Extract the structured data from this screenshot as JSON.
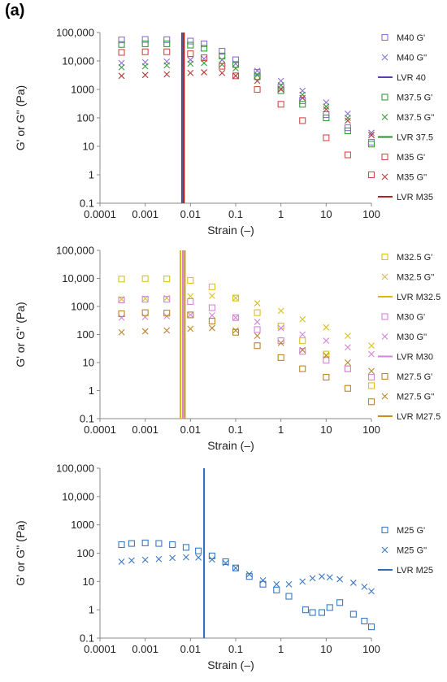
{
  "panel_label": "(a)",
  "chart_data": [
    {
      "type": "scatter",
      "xlabel": "Strain (–)",
      "ylabel": "G' or G'' (Pa)",
      "xscale": "log",
      "yscale": "log",
      "xlim": [
        0.0001,
        100
      ],
      "ylim": [
        0.1,
        100000
      ],
      "xticks": [
        "0.0001",
        "0.001",
        "0.01",
        "0.1",
        "1",
        "10",
        "100"
      ],
      "yticks": [
        "0.1",
        "1",
        "10",
        "100",
        "1000",
        "10,000",
        "100,000"
      ],
      "grid": false,
      "legend": "right",
      "series": [
        {
          "name": "M40 G'",
          "marker": "square",
          "color": "#8e6fd1",
          "x": [
            0.0003,
            0.001,
            0.003,
            0.01,
            0.02,
            0.05,
            0.1,
            0.3,
            1,
            3,
            10,
            30,
            100
          ],
          "y": [
            55000,
            57000,
            56000,
            50000,
            40000,
            22000,
            11000,
            4000,
            1200,
            400,
            130,
            45,
            14
          ]
        },
        {
          "name": "M40 G''",
          "marker": "x",
          "color": "#8e6fd1",
          "x": [
            0.0003,
            0.001,
            0.003,
            0.01,
            0.02,
            0.05,
            0.1,
            0.3,
            1,
            3,
            10,
            30,
            100
          ],
          "y": [
            8500,
            9000,
            9500,
            11000,
            12000,
            11000,
            8000,
            4500,
            2000,
            900,
            350,
            140,
            30
          ]
        },
        {
          "name": "LVR 40",
          "type": "vline",
          "color": "#5b3fb0",
          "x": 0.0065
        },
        {
          "name": "M37.5 G'",
          "marker": "square",
          "color": "#3d9a3d",
          "x": [
            0.0003,
            0.001,
            0.003,
            0.01,
            0.02,
            0.05,
            0.1,
            0.3,
            1,
            3,
            10,
            30,
            100
          ],
          "y": [
            38000,
            40000,
            40000,
            36000,
            28000,
            15000,
            7500,
            2800,
            900,
            300,
            100,
            35,
            12
          ]
        },
        {
          "name": "M37.5 G''",
          "marker": "x",
          "color": "#3d9a3d",
          "x": [
            0.0003,
            0.001,
            0.003,
            0.01,
            0.02,
            0.05,
            0.1,
            0.3,
            1,
            3,
            10,
            30,
            100
          ],
          "y": [
            6000,
            6500,
            7000,
            8000,
            8500,
            7500,
            5500,
            3200,
            1400,
            650,
            250,
            100,
            25
          ]
        },
        {
          "name": "LVR 37.5",
          "type": "vline",
          "color": "#2e8b2e",
          "x": 0.007
        },
        {
          "name": "M35 G'",
          "marker": "square",
          "color": "#d24b4b",
          "x": [
            0.0003,
            0.001,
            0.003,
            0.01,
            0.02,
            0.05,
            0.1,
            0.3,
            1,
            3,
            10,
            30,
            100
          ],
          "y": [
            20000,
            21000,
            21000,
            18000,
            13000,
            6500,
            3000,
            1000,
            300,
            80,
            20,
            5,
            1
          ]
        },
        {
          "name": "M35 G''",
          "marker": "x",
          "color": "#b23b3b",
          "x": [
            0.0003,
            0.001,
            0.003,
            0.01,
            0.02,
            0.05,
            0.1,
            0.3,
            1,
            3,
            10,
            30,
            100
          ],
          "y": [
            3000,
            3200,
            3400,
            3800,
            4000,
            3800,
            3000,
            2000,
            1000,
            500,
            200,
            80,
            25
          ]
        },
        {
          "name": "LVR M35",
          "type": "vline",
          "color": "#b22222",
          "x": 0.0072
        }
      ]
    },
    {
      "type": "scatter",
      "xlabel": "Strain (–)",
      "ylabel": "G' or G'' (Pa)",
      "xscale": "log",
      "yscale": "log",
      "xlim": [
        0.0001,
        100
      ],
      "ylim": [
        0.1,
        100000
      ],
      "xticks": [
        "0.0001",
        "0.001",
        "0.01",
        "0.1",
        "1",
        "10",
        "100"
      ],
      "yticks": [
        "0.1",
        "1",
        "10",
        "100",
        "1000",
        "10,000",
        "100,000"
      ],
      "grid": false,
      "legend": "right",
      "series": [
        {
          "name": "M32.5 G'",
          "marker": "square",
          "color": "#d9c21a",
          "x": [
            0.0003,
            0.001,
            0.003,
            0.01,
            0.03,
            0.1,
            0.3,
            1,
            3,
            10,
            30,
            100
          ],
          "y": [
            9500,
            9800,
            9600,
            8500,
            5000,
            2000,
            600,
            200,
            60,
            20,
            6,
            1.5
          ]
        },
        {
          "name": "M32.5 G''",
          "marker": "x",
          "color": "#d9c21a",
          "x": [
            0.0003,
            0.001,
            0.003,
            0.01,
            0.03,
            0.1,
            0.3,
            1,
            3,
            10,
            30,
            100
          ],
          "y": [
            1800,
            1900,
            2000,
            2300,
            2400,
            2000,
            1300,
            700,
            350,
            180,
            90,
            40
          ]
        },
        {
          "name": "LVR M32.5",
          "type": "vline",
          "color": "#e0b800",
          "x": 0.006
        },
        {
          "name": "M30 G'",
          "marker": "square",
          "color": "#d186d9",
          "x": [
            0.0003,
            0.001,
            0.003,
            0.01,
            0.03,
            0.1,
            0.3,
            1,
            3,
            10,
            30,
            100
          ],
          "y": [
            1700,
            1800,
            1800,
            1500,
            900,
            400,
            150,
            60,
            25,
            12,
            6,
            3
          ]
        },
        {
          "name": "M30 G''",
          "marker": "x",
          "color": "#d186d9",
          "x": [
            0.0003,
            0.001,
            0.003,
            0.01,
            0.03,
            0.1,
            0.3,
            1,
            3,
            10,
            30,
            100
          ],
          "y": [
            400,
            420,
            450,
            500,
            480,
            400,
            280,
            170,
            100,
            60,
            35,
            20
          ]
        },
        {
          "name": "LVR M30",
          "type": "vline",
          "color": "#d186d9",
          "x": 0.0068
        },
        {
          "name": "M27.5 G'",
          "marker": "square",
          "color": "#b8862b",
          "x": [
            0.0003,
            0.001,
            0.003,
            0.01,
            0.03,
            0.1,
            0.3,
            1,
            3,
            10,
            30,
            100
          ],
          "y": [
            550,
            600,
            580,
            500,
            300,
            120,
            40,
            15,
            6,
            3,
            1.2,
            0.4
          ]
        },
        {
          "name": "M27.5 G''",
          "marker": "x",
          "color": "#b8862b",
          "x": [
            0.0003,
            0.001,
            0.003,
            0.01,
            0.03,
            0.1,
            0.3,
            1,
            3,
            10,
            30,
            100
          ],
          "y": [
            120,
            130,
            140,
            160,
            170,
            140,
            90,
            50,
            28,
            18,
            10,
            5
          ]
        },
        {
          "name": "LVR M27.5",
          "type": "vline",
          "color": "#d08a1a",
          "x": 0.0075
        }
      ]
    },
    {
      "type": "scatter",
      "xlabel": "Strain (–)",
      "ylabel": "G' or G'' (Pa)",
      "xscale": "log",
      "yscale": "log",
      "xlim": [
        0.0001,
        100
      ],
      "ylim": [
        0.1,
        100000
      ],
      "xticks": [
        "0.0001",
        "0.001",
        "0.01",
        "0.1",
        "1",
        "10",
        "100"
      ],
      "yticks": [
        "0.1",
        "1",
        "10",
        "100",
        "1000",
        "10,000",
        "100,000"
      ],
      "grid": false,
      "legend": "right",
      "series": [
        {
          "name": "M25 G'",
          "marker": "square",
          "color": "#3a78c2",
          "x": [
            0.0003,
            0.0005,
            0.001,
            0.002,
            0.004,
            0.008,
            0.015,
            0.03,
            0.06,
            0.1,
            0.2,
            0.4,
            0.8,
            1.5,
            3.5,
            5,
            8,
            12,
            20,
            40,
            70,
            100
          ],
          "y": [
            200,
            220,
            230,
            220,
            200,
            160,
            120,
            80,
            50,
            30,
            15,
            8,
            5,
            3,
            1,
            0.8,
            0.8,
            1.2,
            1.8,
            0.7,
            0.4,
            0.25
          ]
        },
        {
          "name": "M25 G''",
          "marker": "x",
          "color": "#3a78c2",
          "x": [
            0.0003,
            0.0005,
            0.001,
            0.002,
            0.004,
            0.008,
            0.015,
            0.03,
            0.06,
            0.1,
            0.2,
            0.4,
            0.8,
            1.5,
            3,
            5,
            8,
            12,
            20,
            40,
            70,
            100
          ],
          "y": [
            50,
            55,
            58,
            62,
            68,
            72,
            70,
            60,
            45,
            30,
            18,
            11,
            8,
            8,
            10,
            13,
            15,
            14,
            12,
            9,
            6.5,
            4.5
          ]
        },
        {
          "name": "LVR M25",
          "type": "vline",
          "color": "#2a6db5",
          "x": 0.02
        }
      ]
    }
  ]
}
